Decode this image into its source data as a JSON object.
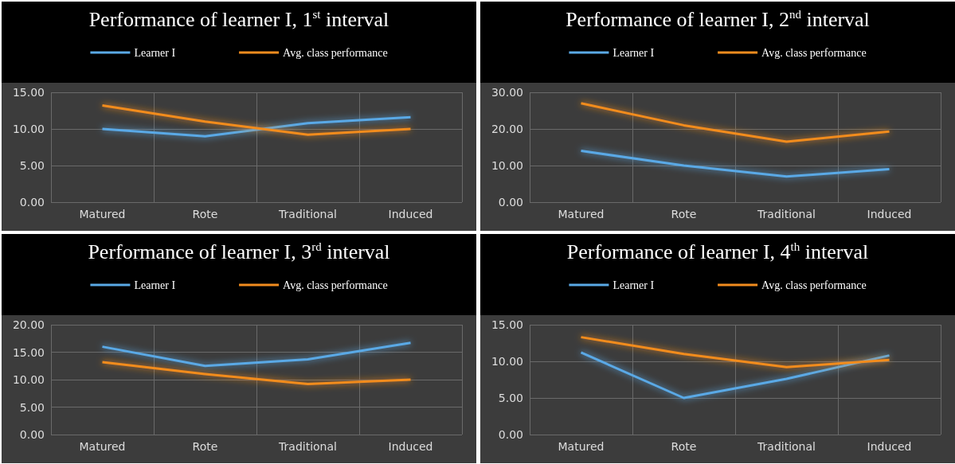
{
  "chart_data": [
    {
      "type": "line",
      "title": "Performance of learner I, 1$^{st}$ interval",
      "categories": [
        "Matured",
        "Rote",
        "Traditional",
        "Induced"
      ],
      "series": [
        {
          "name": "Learner I",
          "color": "#5aa9e6",
          "values": [
            10,
            9,
            10.8,
            11.6
          ]
        },
        {
          "name": "Avg. class performance",
          "color": "#f28c1e",
          "values": [
            13.2,
            11,
            9.2,
            10
          ]
        }
      ],
      "ylim": [
        0,
        15
      ],
      "yticks": [
        {
          "value": 0,
          "label": "0.00"
        },
        {
          "value": 5,
          "label": "5.00"
        },
        {
          "value": 10,
          "label": "10.00"
        },
        {
          "value": 15,
          "label": "15.00"
        }
      ],
      "grid": true,
      "legend": "top",
      "marker": "none"
    },
    {
      "type": "line",
      "title": "Performance of learner I, 2$^{nd}$ interval",
      "categories": [
        "Matured",
        "Rote",
        "Traditional",
        "Induced"
      ],
      "series": [
        {
          "name": "Learner I",
          "color": "#5aa9e6",
          "values": [
            14,
            10,
            7,
            9
          ]
        },
        {
          "name": "Avg. class performance",
          "color": "#f28c1e",
          "values": [
            27,
            21,
            16.5,
            19.3
          ]
        }
      ],
      "ylim": [
        0,
        30
      ],
      "yticks": [
        {
          "value": 0,
          "label": "0.00"
        },
        {
          "value": 10,
          "label": "10.00"
        },
        {
          "value": 20,
          "label": "20.00"
        },
        {
          "value": 30,
          "label": "30.00"
        }
      ],
      "grid": true,
      "legend": "top",
      "marker": "none"
    },
    {
      "type": "line",
      "title": "Performance of learner I, 3$^{rd}$ interval",
      "categories": [
        "Matured",
        "Rote",
        "Traditional",
        "Induced"
      ],
      "series": [
        {
          "name": "Learner I",
          "color": "#5aa9e6",
          "values": [
            16,
            12.5,
            13.7,
            16.7
          ]
        },
        {
          "name": "Avg. class performance",
          "color": "#f28c1e",
          "values": [
            13.2,
            11,
            9.2,
            10
          ]
        }
      ],
      "ylim": [
        0,
        20
      ],
      "yticks": [
        {
          "value": 0,
          "label": "0.00"
        },
        {
          "value": 5,
          "label": "5.00"
        },
        {
          "value": 10,
          "label": "10.00"
        },
        {
          "value": 15,
          "label": "15.00"
        },
        {
          "value": 20,
          "label": "20.00"
        }
      ],
      "grid": true,
      "legend": "top",
      "marker": "none"
    },
    {
      "type": "line",
      "title": "Performance of learner I, 4$^{th}$ interval",
      "categories": [
        "Matured",
        "Rote",
        "Traditional",
        "Induced"
      ],
      "series": [
        {
          "name": "Learner I",
          "color": "#5aa9e6",
          "values": [
            11.2,
            5,
            7.6,
            10.8
          ]
        },
        {
          "name": "Avg. class performance",
          "color": "#f28c1e",
          "values": [
            13.3,
            11,
            9.2,
            10.2
          ]
        }
      ],
      "ylim": [
        0,
        15
      ],
      "yticks": [
        {
          "value": 0,
          "label": "0.00"
        },
        {
          "value": 5,
          "label": "5.00"
        },
        {
          "value": 10,
          "label": "10.00"
        },
        {
          "value": 15,
          "label": "15.00"
        }
      ],
      "grid": true,
      "legend": "top",
      "marker": "none"
    }
  ]
}
